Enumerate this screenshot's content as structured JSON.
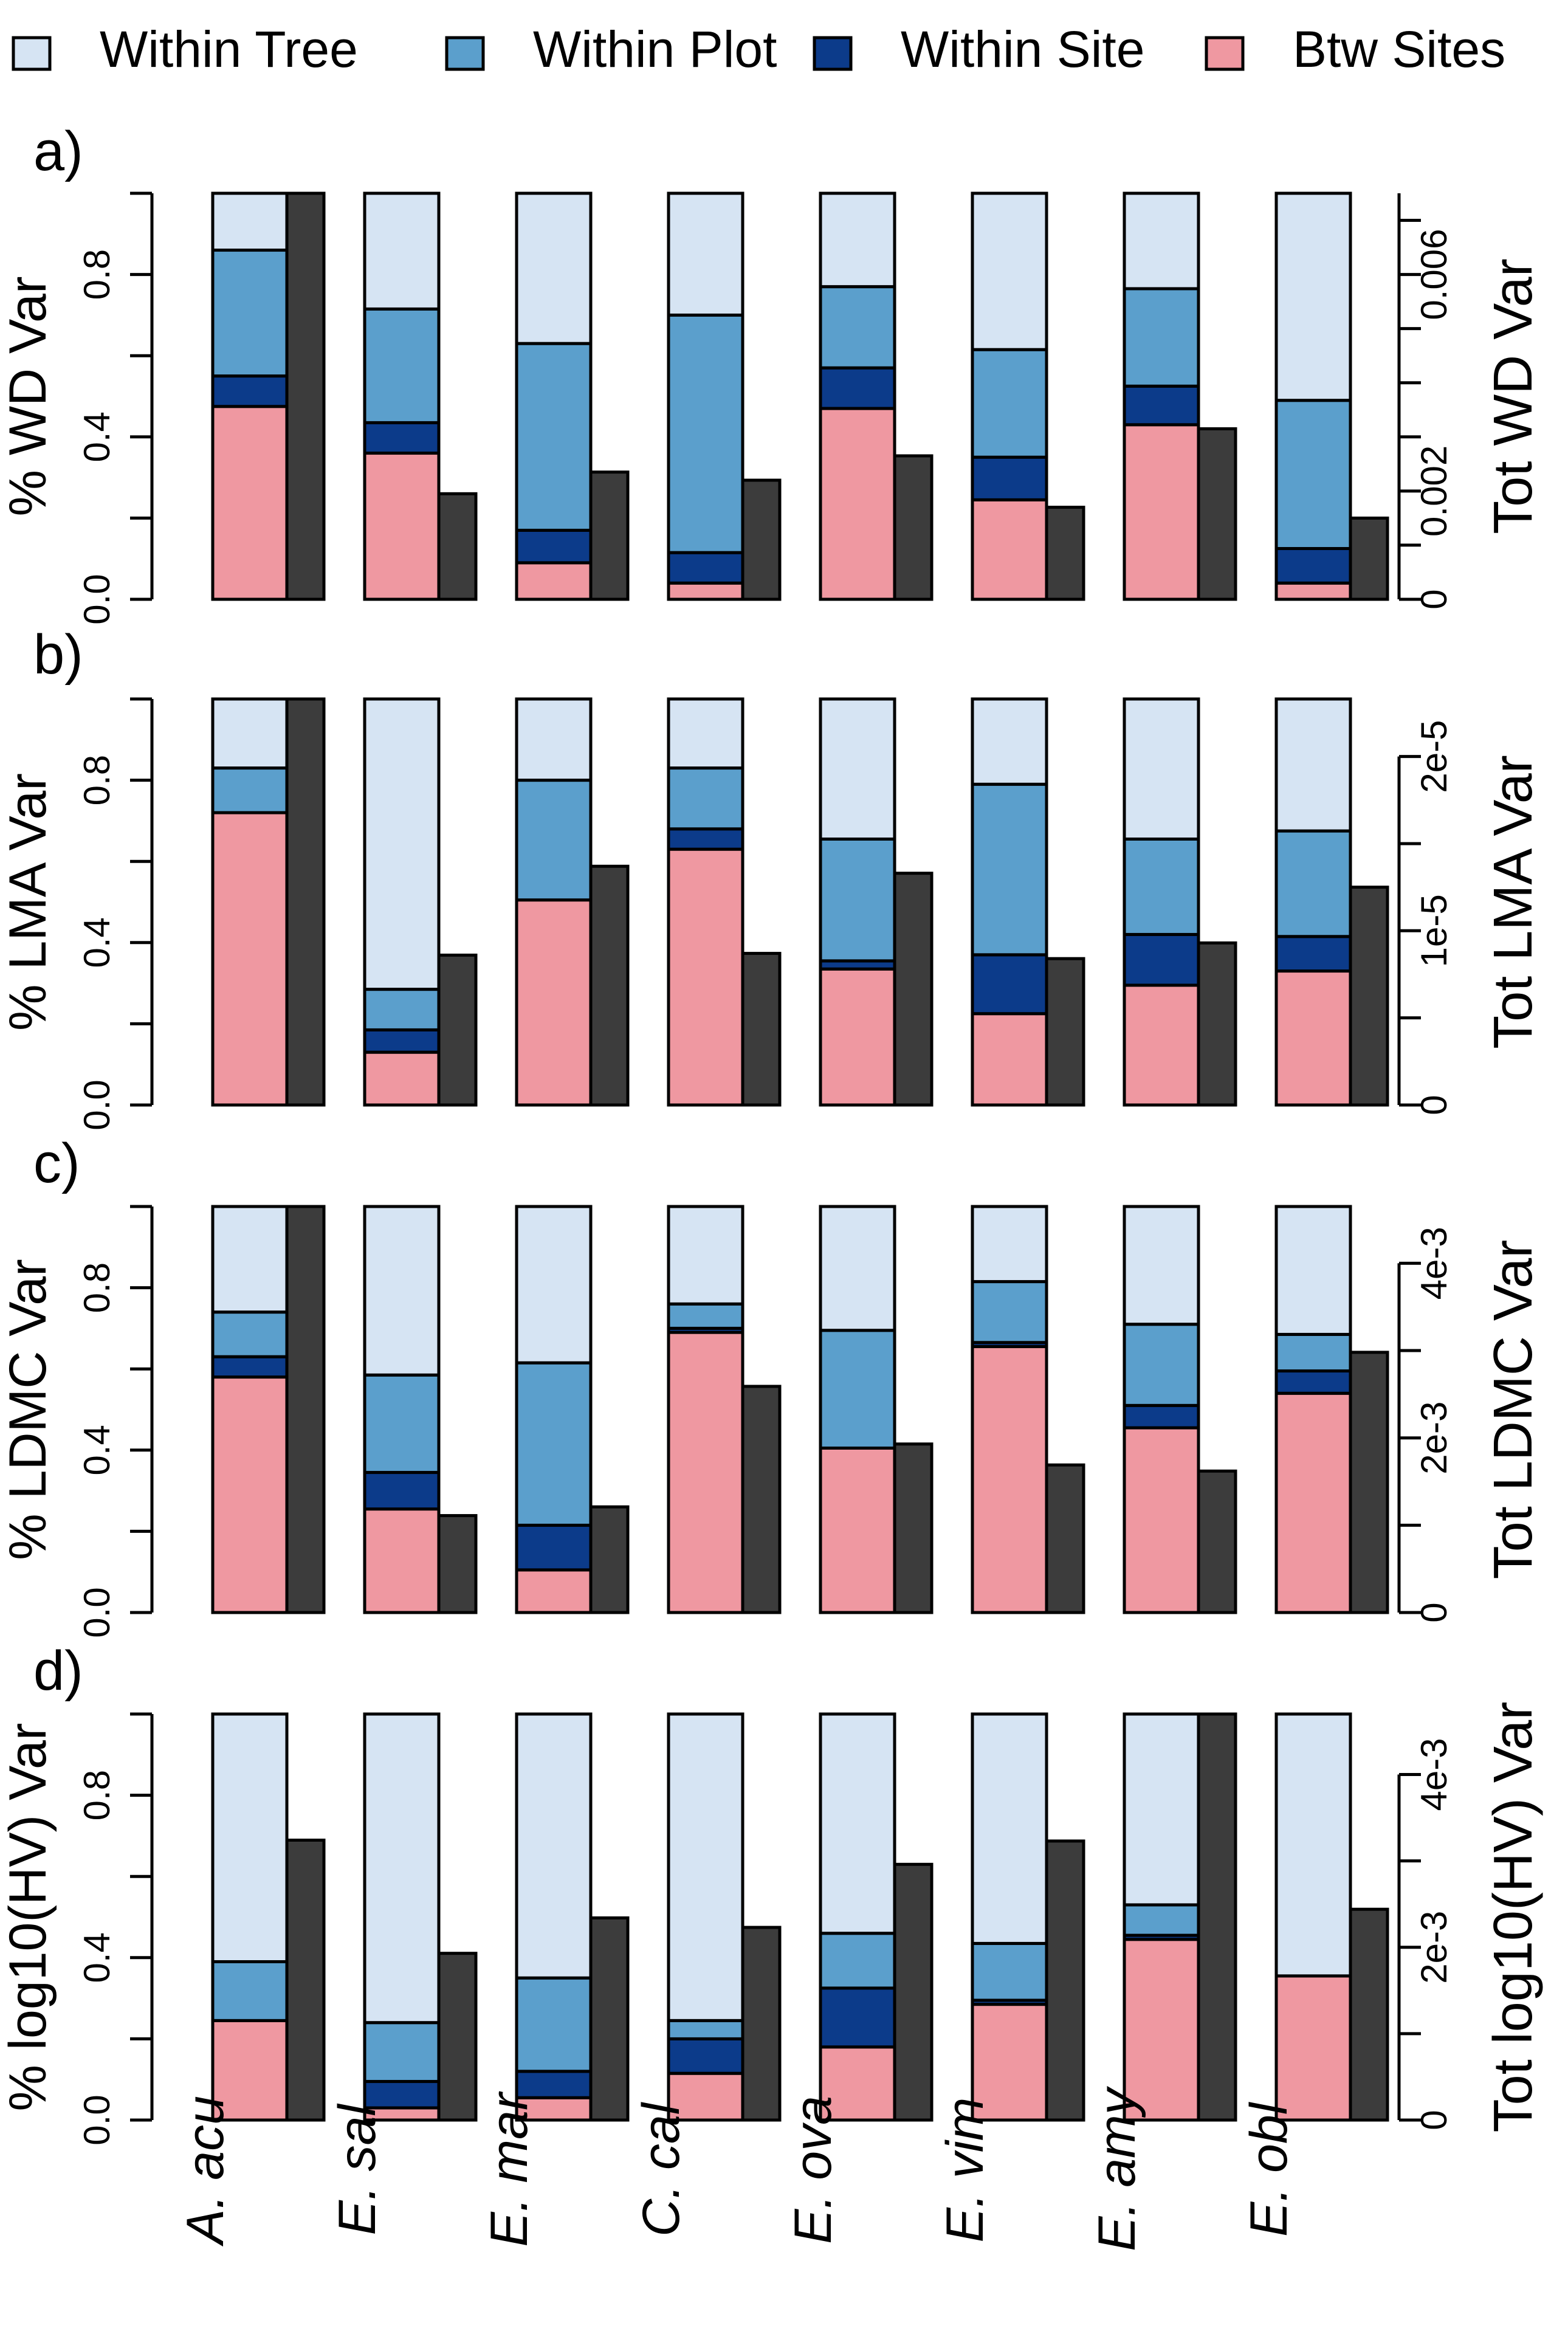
{
  "colors": {
    "within_tree": "#d6e4f3",
    "within_plot": "#5b9fcc",
    "within_site": "#0c3b8a",
    "btw_sites": "#ef98a1",
    "total": "#3c3c3c"
  },
  "legend": {
    "items": [
      {
        "label": "Within Tree",
        "color": "#d6e4f3"
      },
      {
        "label": "Within Plot",
        "color": "#5b9fcc"
      },
      {
        "label": "Within Site",
        "color": "#0c3b8a"
      },
      {
        "label": "Btw Sites",
        "color": "#ef98a1"
      }
    ]
  },
  "chart_data": [
    {
      "type": "bar",
      "panel_label": "a)",
      "categories": [
        "A. acu",
        "E. sal",
        "E. mar",
        "C. cal",
        "E. ova",
        "E. vim",
        "E. amy",
        "E. obl"
      ],
      "ylabel_left": "% WD Var",
      "ylabel_right": "Tot WD Var",
      "ylim_left": [
        0,
        1
      ],
      "left_ticks": [
        "0.0",
        "0.4",
        "0.8"
      ],
      "right_ticks": [
        "0",
        "0.002",
        "0.006"
      ],
      "right_tick_values": [
        0,
        0.002,
        0.006
      ],
      "ylim_right": [
        0,
        0.0075
      ],
      "right_axis_top": 0.0075,
      "series": [
        {
          "name": "Btw Sites",
          "values": [
            0.475,
            0.36,
            0.09,
            0.04,
            0.47,
            0.245,
            0.43,
            0.04
          ]
        },
        {
          "name": "Within Site",
          "values": [
            0.075,
            0.075,
            0.08,
            0.075,
            0.1,
            0.105,
            0.095,
            0.085
          ]
        },
        {
          "name": "Within Plot",
          "values": [
            0.31,
            0.28,
            0.46,
            0.585,
            0.2,
            0.265,
            0.24,
            0.365
          ]
        },
        {
          "name": "Within Tree",
          "values": [
            0.14,
            0.285,
            0.37,
            0.3,
            0.23,
            0.385,
            0.235,
            0.51
          ]
        }
      ],
      "total_variance": [
        0.0075,
        0.00195,
        0.00235,
        0.0022,
        0.00265,
        0.0017,
        0.00315,
        0.0015
      ]
    },
    {
      "type": "bar",
      "panel_label": "b)",
      "categories": [
        "A. acu",
        "E. sal",
        "E. mar",
        "C. cal",
        "E. ova",
        "E. vim",
        "E. amy",
        "E. obl"
      ],
      "ylabel_left": "% LMA Var",
      "ylabel_right": "Tot LMA Var",
      "ylim_left": [
        0,
        1
      ],
      "left_ticks": [
        "0.0",
        "0.4",
        "0.8"
      ],
      "right_ticks": [
        "0",
        "1e-5",
        "2e-5"
      ],
      "right_tick_values": [
        0,
        1e-05,
        2e-05
      ],
      "ylim_right": [
        0,
        2.33e-05
      ],
      "right_axis_top": 2e-05,
      "series": [
        {
          "name": "Btw Sites",
          "values": [
            0.72,
            0.13,
            0.505,
            0.63,
            0.335,
            0.225,
            0.295,
            0.33
          ]
        },
        {
          "name": "Within Site",
          "values": [
            0.0,
            0.055,
            0.0,
            0.05,
            0.02,
            0.145,
            0.125,
            0.085
          ]
        },
        {
          "name": "Within Plot",
          "values": [
            0.11,
            0.1,
            0.295,
            0.15,
            0.3,
            0.42,
            0.235,
            0.26
          ]
        },
        {
          "name": "Within Tree",
          "values": [
            0.17,
            0.715,
            0.2,
            0.17,
            0.345,
            0.21,
            0.345,
            0.325
          ]
        }
      ],
      "total_variance": [
        2.33e-05,
        8.6e-06,
        1.37e-05,
        8.7e-06,
        1.33e-05,
        8.4e-06,
        9.3e-06,
        1.25e-05
      ]
    },
    {
      "type": "bar",
      "panel_label": "c)",
      "categories": [
        "A. acu",
        "E. sal",
        "E. mar",
        "C. cal",
        "E. ova",
        "E. vim",
        "E. amy",
        "E. obl"
      ],
      "ylabel_left": "% LDMC Var",
      "ylabel_right": "Tot LDMC Var",
      "ylim_left": [
        0,
        1
      ],
      "left_ticks": [
        "0.0",
        "0.4",
        "0.8"
      ],
      "right_ticks": [
        "0",
        "2e-3",
        "4e-3"
      ],
      "right_tick_values": [
        0,
        0.002,
        0.004
      ],
      "ylim_right": [
        0,
        0.00465
      ],
      "right_axis_top": 0.004,
      "series": [
        {
          "name": "Btw Sites",
          "values": [
            0.58,
            0.255,
            0.105,
            0.69,
            0.405,
            0.655,
            0.455,
            0.54
          ]
        },
        {
          "name": "Within Site",
          "values": [
            0.05,
            0.09,
            0.11,
            0.01,
            0.0,
            0.01,
            0.055,
            0.055
          ]
        },
        {
          "name": "Within Plot",
          "values": [
            0.11,
            0.24,
            0.4,
            0.06,
            0.29,
            0.15,
            0.2,
            0.09
          ]
        },
        {
          "name": "Within Tree",
          "values": [
            0.26,
            0.415,
            0.385,
            0.24,
            0.305,
            0.185,
            0.29,
            0.315
          ]
        }
      ],
      "total_variance": [
        0.00465,
        0.00111,
        0.00121,
        0.00259,
        0.00193,
        0.00169,
        0.00162,
        0.00298
      ]
    },
    {
      "type": "bar",
      "panel_label": "d)",
      "categories": [
        "A. acu",
        "E. sal",
        "E. mar",
        "C. cal",
        "E. ova",
        "E. vim",
        "E. amy",
        "E. obl"
      ],
      "ylabel_left": "% log10(HV) Var",
      "ylabel_right": "Tot log10(HV) Var",
      "ylim_left": [
        0,
        1
      ],
      "left_ticks": [
        "0.0",
        "0.4",
        "0.8"
      ],
      "right_ticks": [
        "0",
        "2e-3",
        "4e-3"
      ],
      "right_tick_values": [
        0,
        0.002,
        0.004
      ],
      "ylim_right": [
        0,
        0.0047
      ],
      "right_axis_top": 0.004,
      "series": [
        {
          "name": "Btw Sites",
          "values": [
            0.245,
            0.03,
            0.055,
            0.115,
            0.18,
            0.285,
            0.445,
            0.355
          ]
        },
        {
          "name": "Within Site",
          "values": [
            0.0,
            0.065,
            0.065,
            0.085,
            0.145,
            0.01,
            0.01,
            0.0
          ]
        },
        {
          "name": "Within Plot",
          "values": [
            0.145,
            0.145,
            0.23,
            0.045,
            0.135,
            0.14,
            0.075,
            0.0
          ]
        },
        {
          "name": "Within Tree",
          "values": [
            0.61,
            0.76,
            0.65,
            0.755,
            0.54,
            0.565,
            0.47,
            0.645
          ]
        }
      ],
      "total_variance": [
        0.00324,
        0.00193,
        0.00234,
        0.00223,
        0.00296,
        0.00323,
        0.0047,
        0.00244
      ]
    }
  ]
}
